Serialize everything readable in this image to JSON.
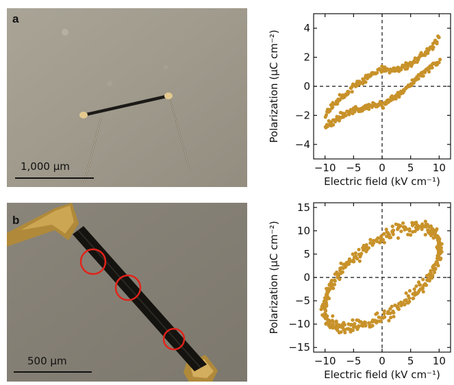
{
  "panels": [
    {
      "letter": "a",
      "scale_bar_label": "1,000 μm"
    },
    {
      "letter": "b",
      "scale_bar_label": "500 μm"
    }
  ],
  "chart_data": [
    {
      "type": "scatter",
      "xlabel": "Electric field (kV cm⁻¹)",
      "ylabel": "Polarization (μC cm⁻²)",
      "xlim": [
        -12,
        12
      ],
      "ylim": [
        -5,
        5
      ],
      "xticks": [
        -10,
        -5,
        0,
        5,
        10
      ],
      "yticks": [
        -4,
        -2,
        0,
        2,
        4
      ],
      "xtick_labels": [
        "−10",
        "−5",
        "0",
        "5",
        "10"
      ],
      "ytick_labels": [
        "−4",
        "−2",
        "0",
        "2",
        "4"
      ],
      "color": "#c8922a",
      "loop": {
        "E_max": 10,
        "P_top_at_Emax": 3.3,
        "P_bottom_at_Emax": 1.8,
        "P_top_at_0": 1.1,
        "P_bottom_at_0": -1.3,
        "P_top_at_Emin": -1.8,
        "P_bottom_at_Emin": -2.8,
        "points_per_branch": 180
      },
      "grid": false
    },
    {
      "type": "scatter",
      "xlabel": "Electric field (kV cm⁻¹)",
      "ylabel": "Polarization (μC cm⁻²)",
      "xlim": [
        -12,
        12
      ],
      "ylim": [
        -16,
        16
      ],
      "xticks": [
        -10,
        -5,
        0,
        5,
        10
      ],
      "yticks": [
        -15,
        -10,
        -5,
        0,
        5,
        10,
        15
      ],
      "xtick_labels": [
        "−10",
        "−5",
        "0",
        "5",
        "10"
      ],
      "ytick_labels": [
        "−15",
        "−10",
        "−5",
        "0",
        "5",
        "10",
        "15"
      ],
      "color": "#c8922a",
      "loop": {
        "E_max": 11,
        "P_top_at_Emax": 6,
        "P_peak_top": 11,
        "E_at_peak_top": 5,
        "P_top_at_0": 8,
        "P_top_at_Emin": -4,
        "P_bottom_at_Emin": -7,
        "P_peak_bottom": -10,
        "E_at_peak_bottom": -6,
        "P_bottom_at_0": -7,
        "P_bottom_at_Emax": 6,
        "points_per_branch": 220
      },
      "grid": false
    }
  ]
}
